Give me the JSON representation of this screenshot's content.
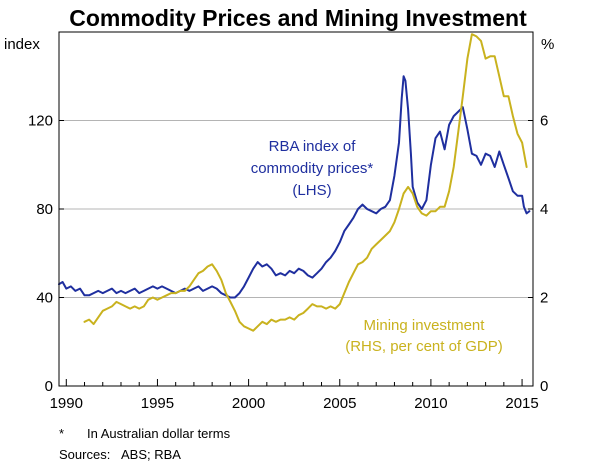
{
  "chart_data": {
    "type": "line",
    "title": "Commodity Prices and Mining Investment",
    "left_unit": "index",
    "right_unit": "%",
    "x_range": [
      1989.6,
      2015.6
    ],
    "y_left_range": [
      0,
      160
    ],
    "y_right_range": [
      0,
      8
    ],
    "x_ticks": [
      1990,
      1995,
      2000,
      2005,
      2010,
      2015
    ],
    "y_left_ticks": [
      0,
      40,
      80,
      120
    ],
    "y_right_ticks": [
      0,
      2,
      4,
      6
    ],
    "y_left_tick_labels": [
      "0",
      "40",
      "80",
      "120"
    ],
    "y_right_tick_labels": [
      "0",
      "2",
      "4",
      "6"
    ],
    "x_tick_labels": [
      "1990",
      "1995",
      "2000",
      "2005",
      "2010",
      "2015"
    ],
    "grid": true,
    "colors": {
      "commodity": "#1f2f9f",
      "mining": "#c9b21e",
      "grid": "#b4b4b4"
    },
    "series": [
      {
        "id": "commodity",
        "axis": "left",
        "annotation_lines": [
          "RBA index of",
          "commodity prices*",
          "(LHS)"
        ],
        "points": [
          [
            1989.6,
            46
          ],
          [
            1989.8,
            47
          ],
          [
            1990.0,
            44
          ],
          [
            1990.25,
            45
          ],
          [
            1990.5,
            43
          ],
          [
            1990.75,
            44
          ],
          [
            1991.0,
            41
          ],
          [
            1991.25,
            41
          ],
          [
            1991.5,
            42
          ],
          [
            1991.75,
            43
          ],
          [
            1992.0,
            42
          ],
          [
            1992.25,
            43
          ],
          [
            1992.5,
            44
          ],
          [
            1992.75,
            42
          ],
          [
            1993.0,
            43
          ],
          [
            1993.25,
            42
          ],
          [
            1993.5,
            43
          ],
          [
            1993.75,
            44
          ],
          [
            1994.0,
            42
          ],
          [
            1994.25,
            43
          ],
          [
            1994.5,
            44
          ],
          [
            1994.75,
            45
          ],
          [
            1995.0,
            44
          ],
          [
            1995.25,
            45
          ],
          [
            1995.5,
            44
          ],
          [
            1995.75,
            43
          ],
          [
            1996.0,
            42
          ],
          [
            1996.25,
            43
          ],
          [
            1996.5,
            44
          ],
          [
            1996.75,
            43
          ],
          [
            1997.0,
            44
          ],
          [
            1997.25,
            45
          ],
          [
            1997.5,
            43
          ],
          [
            1997.75,
            44
          ],
          [
            1998.0,
            45
          ],
          [
            1998.25,
            44
          ],
          [
            1998.5,
            42
          ],
          [
            1998.75,
            41
          ],
          [
            1999.0,
            40
          ],
          [
            1999.25,
            40
          ],
          [
            1999.5,
            42
          ],
          [
            1999.75,
            45
          ],
          [
            2000.0,
            49
          ],
          [
            2000.25,
            53
          ],
          [
            2000.5,
            56
          ],
          [
            2000.75,
            54
          ],
          [
            2001.0,
            55
          ],
          [
            2001.25,
            53
          ],
          [
            2001.5,
            50
          ],
          [
            2001.75,
            51
          ],
          [
            2002.0,
            50
          ],
          [
            2002.25,
            52
          ],
          [
            2002.5,
            51
          ],
          [
            2002.75,
            53
          ],
          [
            2003.0,
            52
          ],
          [
            2003.25,
            50
          ],
          [
            2003.5,
            49
          ],
          [
            2003.75,
            51
          ],
          [
            2004.0,
            53
          ],
          [
            2004.25,
            56
          ],
          [
            2004.5,
            58
          ],
          [
            2004.75,
            61
          ],
          [
            2005.0,
            65
          ],
          [
            2005.25,
            70
          ],
          [
            2005.5,
            73
          ],
          [
            2005.75,
            76
          ],
          [
            2006.0,
            80
          ],
          [
            2006.25,
            82
          ],
          [
            2006.5,
            80
          ],
          [
            2006.75,
            79
          ],
          [
            2007.0,
            78
          ],
          [
            2007.25,
            80
          ],
          [
            2007.5,
            81
          ],
          [
            2007.75,
            84
          ],
          [
            2008.0,
            95
          ],
          [
            2008.25,
            110
          ],
          [
            2008.4,
            130
          ],
          [
            2008.5,
            140
          ],
          [
            2008.6,
            138
          ],
          [
            2008.75,
            125
          ],
          [
            2008.9,
            105
          ],
          [
            2009.0,
            90
          ],
          [
            2009.25,
            83
          ],
          [
            2009.5,
            80
          ],
          [
            2009.75,
            84
          ],
          [
            2010.0,
            100
          ],
          [
            2010.25,
            112
          ],
          [
            2010.5,
            115
          ],
          [
            2010.75,
            107
          ],
          [
            2011.0,
            118
          ],
          [
            2011.25,
            122
          ],
          [
            2011.5,
            124
          ],
          [
            2011.75,
            126
          ],
          [
            2012.0,
            116
          ],
          [
            2012.25,
            105
          ],
          [
            2012.5,
            104
          ],
          [
            2012.75,
            100
          ],
          [
            2013.0,
            105
          ],
          [
            2013.25,
            104
          ],
          [
            2013.5,
            99
          ],
          [
            2013.75,
            106
          ],
          [
            2014.0,
            100
          ],
          [
            2014.25,
            94
          ],
          [
            2014.5,
            88
          ],
          [
            2014.75,
            86
          ],
          [
            2015.0,
            86
          ],
          [
            2015.1,
            81
          ],
          [
            2015.25,
            78
          ],
          [
            2015.4,
            79
          ]
        ]
      },
      {
        "id": "mining",
        "axis": "right",
        "annotation_lines": [
          "Mining investment",
          "(RHS, per cent of GDP)"
        ],
        "points": [
          [
            1991.0,
            1.45
          ],
          [
            1991.25,
            1.5
          ],
          [
            1991.5,
            1.4
          ],
          [
            1991.75,
            1.55
          ],
          [
            1992.0,
            1.7
          ],
          [
            1992.25,
            1.75
          ],
          [
            1992.5,
            1.8
          ],
          [
            1992.75,
            1.9
          ],
          [
            1993.0,
            1.85
          ],
          [
            1993.25,
            1.8
          ],
          [
            1993.5,
            1.75
          ],
          [
            1993.75,
            1.8
          ],
          [
            1994.0,
            1.75
          ],
          [
            1994.25,
            1.8
          ],
          [
            1994.5,
            1.95
          ],
          [
            1994.75,
            2.0
          ],
          [
            1995.0,
            1.95
          ],
          [
            1995.25,
            2.0
          ],
          [
            1995.5,
            2.05
          ],
          [
            1995.75,
            2.1
          ],
          [
            1996.0,
            2.1
          ],
          [
            1996.25,
            2.15
          ],
          [
            1996.5,
            2.15
          ],
          [
            1996.75,
            2.25
          ],
          [
            1997.0,
            2.4
          ],
          [
            1997.25,
            2.55
          ],
          [
            1997.5,
            2.6
          ],
          [
            1997.75,
            2.7
          ],
          [
            1998.0,
            2.75
          ],
          [
            1998.25,
            2.6
          ],
          [
            1998.5,
            2.4
          ],
          [
            1998.75,
            2.1
          ],
          [
            1999.0,
            1.9
          ],
          [
            1999.25,
            1.7
          ],
          [
            1999.5,
            1.45
          ],
          [
            1999.75,
            1.35
          ],
          [
            2000.0,
            1.3
          ],
          [
            2000.25,
            1.25
          ],
          [
            2000.5,
            1.35
          ],
          [
            2000.75,
            1.45
          ],
          [
            2001.0,
            1.4
          ],
          [
            2001.25,
            1.5
          ],
          [
            2001.5,
            1.45
          ],
          [
            2001.75,
            1.5
          ],
          [
            2002.0,
            1.5
          ],
          [
            2002.25,
            1.55
          ],
          [
            2002.5,
            1.5
          ],
          [
            2002.75,
            1.6
          ],
          [
            2003.0,
            1.65
          ],
          [
            2003.25,
            1.75
          ],
          [
            2003.5,
            1.85
          ],
          [
            2003.75,
            1.8
          ],
          [
            2004.0,
            1.8
          ],
          [
            2004.25,
            1.75
          ],
          [
            2004.5,
            1.8
          ],
          [
            2004.75,
            1.75
          ],
          [
            2005.0,
            1.85
          ],
          [
            2005.25,
            2.1
          ],
          [
            2005.5,
            2.35
          ],
          [
            2005.75,
            2.55
          ],
          [
            2006.0,
            2.75
          ],
          [
            2006.25,
            2.8
          ],
          [
            2006.5,
            2.9
          ],
          [
            2006.75,
            3.1
          ],
          [
            2007.0,
            3.2
          ],
          [
            2007.25,
            3.3
          ],
          [
            2007.5,
            3.4
          ],
          [
            2007.75,
            3.5
          ],
          [
            2008.0,
            3.7
          ],
          [
            2008.25,
            4.0
          ],
          [
            2008.5,
            4.35
          ],
          [
            2008.75,
            4.5
          ],
          [
            2009.0,
            4.35
          ],
          [
            2009.25,
            4.05
          ],
          [
            2009.5,
            3.9
          ],
          [
            2009.75,
            3.85
          ],
          [
            2010.0,
            3.95
          ],
          [
            2010.25,
            3.95
          ],
          [
            2010.5,
            4.05
          ],
          [
            2010.75,
            4.05
          ],
          [
            2011.0,
            4.4
          ],
          [
            2011.25,
            4.95
          ],
          [
            2011.5,
            5.75
          ],
          [
            2011.75,
            6.55
          ],
          [
            2012.0,
            7.4
          ],
          [
            2012.25,
            7.95
          ],
          [
            2012.5,
            7.9
          ],
          [
            2012.75,
            7.8
          ],
          [
            2013.0,
            7.4
          ],
          [
            2013.25,
            7.45
          ],
          [
            2013.5,
            7.45
          ],
          [
            2013.75,
            7.0
          ],
          [
            2014.0,
            6.55
          ],
          [
            2014.25,
            6.55
          ],
          [
            2014.5,
            6.1
          ],
          [
            2014.75,
            5.7
          ],
          [
            2015.0,
            5.5
          ],
          [
            2015.25,
            4.95
          ]
        ]
      }
    ],
    "notes": [
      {
        "mark": "*",
        "text": "In Australian dollar terms"
      },
      {
        "mark": "Sources:",
        "text": "ABS; RBA"
      }
    ]
  }
}
